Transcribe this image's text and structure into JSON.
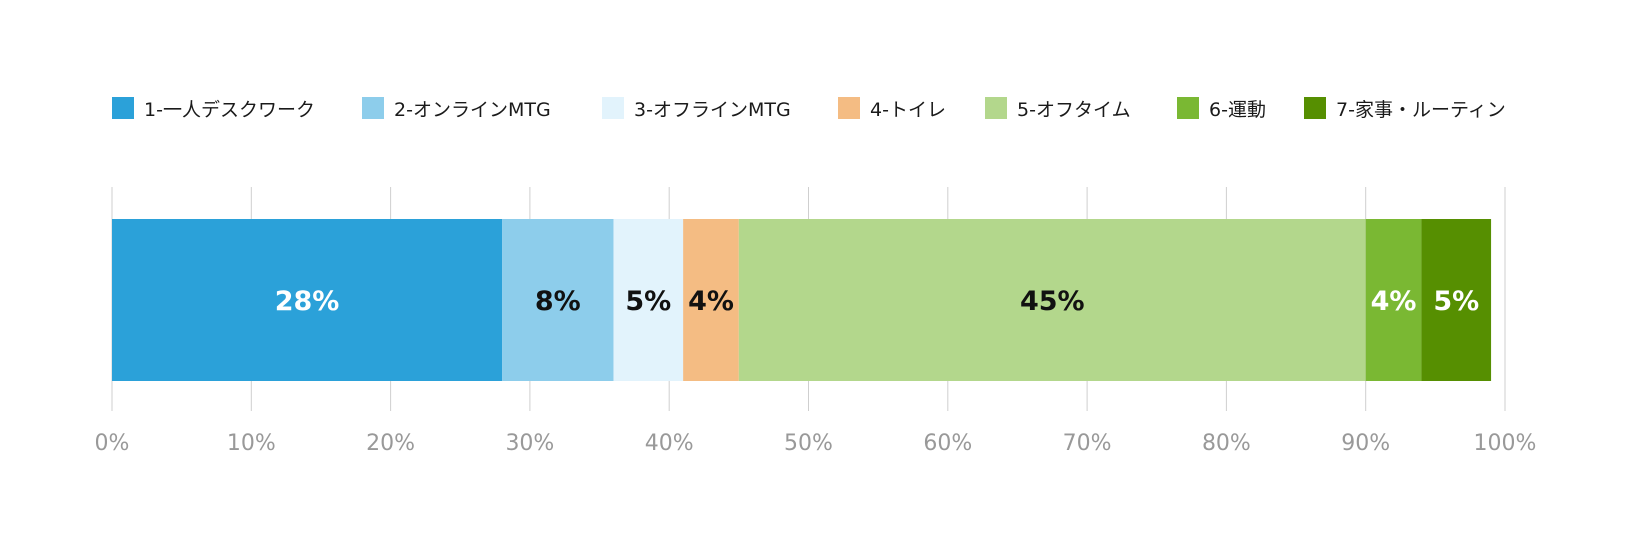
{
  "chart_data": {
    "type": "bar",
    "orientation": "horizontal",
    "stacked": true,
    "categories": [
      ""
    ],
    "series": [
      {
        "name": "1-一人デスクワーク",
        "values": [
          28
        ],
        "label": "28%",
        "color": "#2ba1d9",
        "label_color": "#ffffff"
      },
      {
        "name": "2-オンラインMTG",
        "values": [
          8
        ],
        "label": "8%",
        "color": "#8dcdeb",
        "label_color": "#111111"
      },
      {
        "name": "3-オフラインMTG",
        "values": [
          5
        ],
        "label": "5%",
        "color": "#e2f3fc",
        "label_color": "#111111"
      },
      {
        "name": "4-トイレ",
        "values": [
          4
        ],
        "label": "4%",
        "color": "#f4bc83",
        "label_color": "#111111"
      },
      {
        "name": "5-オフタイム",
        "values": [
          45
        ],
        "label": "45%",
        "color": "#b3d78c",
        "label_color": "#111111"
      },
      {
        "name": "6-運動",
        "values": [
          4
        ],
        "label": "4%",
        "color": "#7ab833",
        "label_color": "#ffffff"
      },
      {
        "name": "7-家事・ルーティン",
        "values": [
          5
        ],
        "label": "5%",
        "color": "#568f01",
        "label_color": "#ffffff"
      }
    ],
    "xlim": [
      0,
      100
    ],
    "xticks": [
      0,
      10,
      20,
      30,
      40,
      50,
      60,
      70,
      80,
      90,
      100
    ],
    "xtick_labels": [
      "0%",
      "10%",
      "20%",
      "30%",
      "40%",
      "50%",
      "60%",
      "70%",
      "80%",
      "90%",
      "100%"
    ],
    "grid": true,
    "legend_position": "top",
    "title": "",
    "xlabel": "",
    "ylabel": ""
  }
}
